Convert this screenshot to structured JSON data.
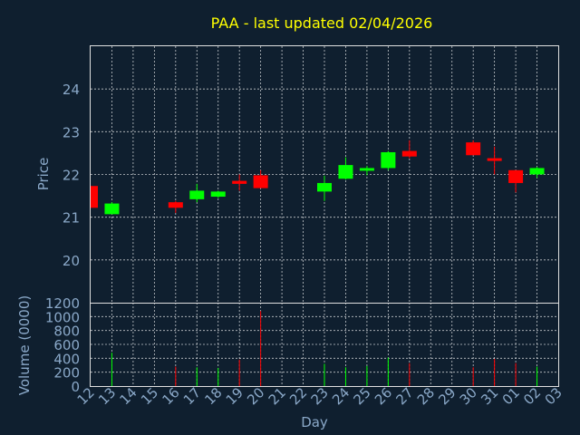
{
  "chart_data": {
    "type": "candlestick",
    "title": "PAA - last updated 02/04/2026",
    "xlabel": "Day",
    "price_panel": {
      "ylabel": "Price",
      "ylim": [
        19.0,
        25.0
      ],
      "yticks": [
        20,
        21,
        22,
        23,
        24
      ]
    },
    "volume_panel": {
      "ylabel": "Volume (0000)",
      "ylim": [
        0,
        1200
      ],
      "yticks": [
        0,
        200,
        400,
        600,
        800,
        1000,
        1200
      ]
    },
    "x_tick_labels": [
      "12",
      "13",
      "14",
      "15",
      "16",
      "17",
      "18",
      "19",
      "20",
      "21",
      "22",
      "23",
      "24",
      "25",
      "26",
      "27",
      "28",
      "29",
      "30",
      "31",
      "01",
      "02",
      "03"
    ],
    "up_color": "#00ff00",
    "down_color": "#ff0000",
    "grid": true,
    "candles": [
      {
        "x": 0,
        "open": 21.73,
        "high": 21.73,
        "low": 21.22,
        "close": 21.22,
        "volume": 0
      },
      {
        "x": 1,
        "open": 21.07,
        "high": 21.35,
        "low": 21.07,
        "close": 21.32,
        "volume": 480
      },
      {
        "x": 4,
        "open": 21.35,
        "high": 21.38,
        "low": 21.1,
        "close": 21.22,
        "volume": 280
      },
      {
        "x": 5,
        "open": 21.42,
        "high": 21.78,
        "low": 21.35,
        "close": 21.62,
        "volume": 270
      },
      {
        "x": 6,
        "open": 21.48,
        "high": 21.62,
        "low": 21.45,
        "close": 21.6,
        "volume": 260
      },
      {
        "x": 7,
        "open": 21.85,
        "high": 22.0,
        "low": 21.62,
        "close": 21.78,
        "volume": 380
      },
      {
        "x": 8,
        "open": 21.98,
        "high": 22.1,
        "low": 21.68,
        "close": 21.68,
        "volume": 1080
      },
      {
        "x": 11,
        "open": 21.6,
        "high": 21.97,
        "low": 21.38,
        "close": 21.8,
        "volume": 320
      },
      {
        "x": 12,
        "open": 21.9,
        "high": 22.4,
        "low": 21.88,
        "close": 22.22,
        "volume": 270
      },
      {
        "x": 13,
        "open": 22.1,
        "high": 22.2,
        "low": 21.98,
        "close": 22.15,
        "volume": 290
      },
      {
        "x": 14,
        "open": 22.15,
        "high": 22.55,
        "low": 22.1,
        "close": 22.52,
        "volume": 410
      },
      {
        "x": 15,
        "open": 22.55,
        "high": 22.8,
        "low": 22.38,
        "close": 22.42,
        "volume": 330
      },
      {
        "x": 18,
        "open": 22.75,
        "high": 22.8,
        "low": 22.45,
        "close": 22.45,
        "volume": 270
      },
      {
        "x": 19,
        "open": 22.38,
        "high": 22.65,
        "low": 22.0,
        "close": 22.35,
        "volume": 390
      },
      {
        "x": 20,
        "open": 22.1,
        "high": 22.1,
        "low": 21.58,
        "close": 21.8,
        "volume": 330
      },
      {
        "x": 21,
        "open": 22.0,
        "high": 22.18,
        "low": 21.92,
        "close": 22.15,
        "volume": 280
      }
    ]
  }
}
